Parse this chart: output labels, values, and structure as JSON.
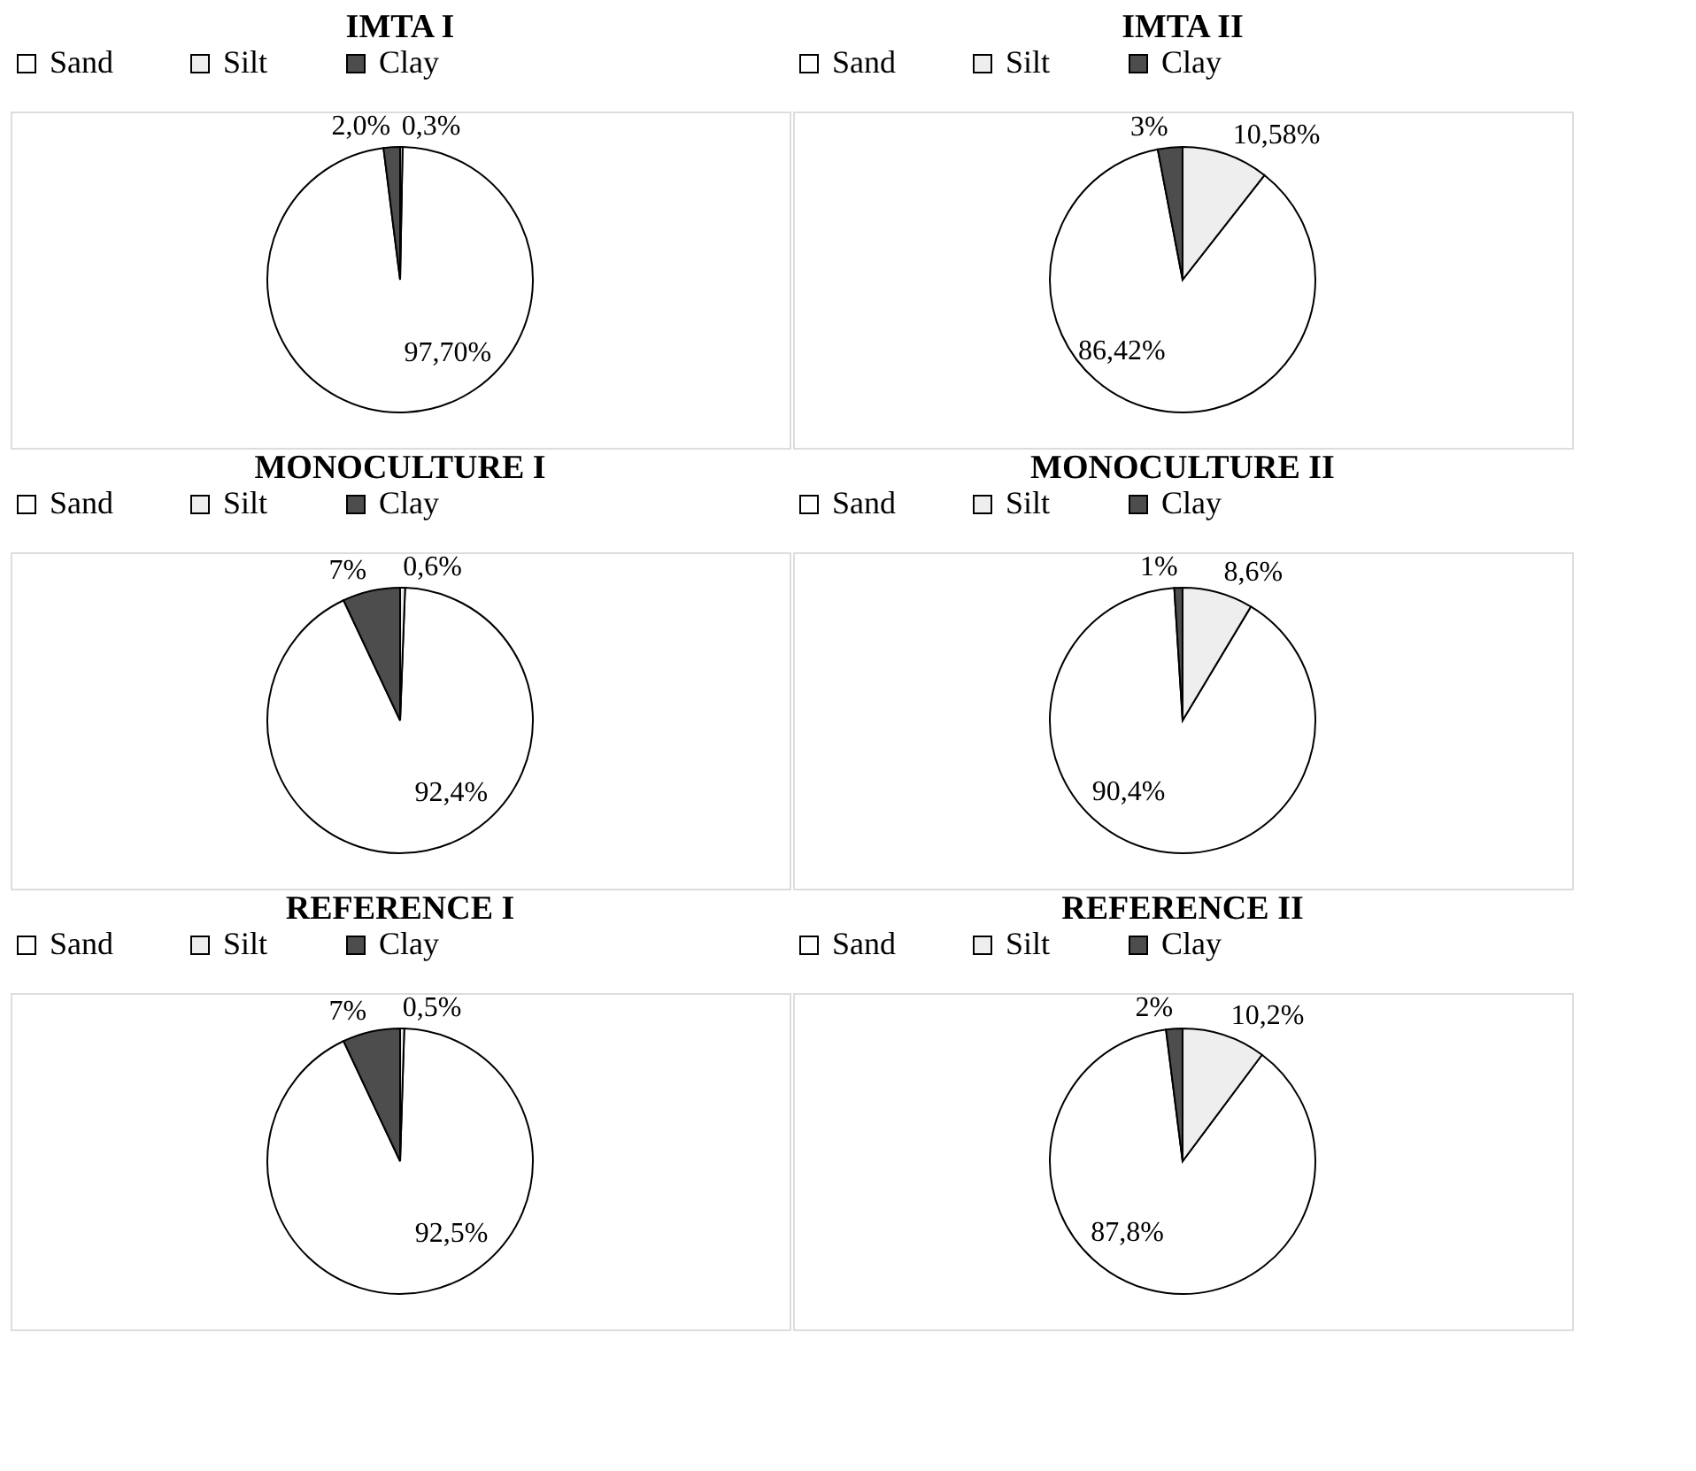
{
  "chart_data": [
    {
      "type": "pie",
      "title": "IMTA I",
      "categories": [
        "Sand",
        "Silt",
        "Clay"
      ],
      "values": [
        97.7,
        0.3,
        2.0
      ],
      "value_labels": [
        "97,70%",
        "0,3%",
        "2,0%"
      ],
      "colors": [
        "#ffffff",
        "#eeeeee",
        "#4d4d4d"
      ],
      "legend": "top"
    },
    {
      "type": "pie",
      "title": "IMTA II",
      "categories": [
        "Sand",
        "Silt",
        "Clay"
      ],
      "values": [
        86.42,
        10.58,
        3
      ],
      "value_labels": [
        "86,42%",
        "10,58%",
        "3%"
      ],
      "colors": [
        "#ffffff",
        "#eeeeee",
        "#4d4d4d"
      ],
      "legend": "top"
    },
    {
      "type": "pie",
      "title": "MONOCULTURE I",
      "categories": [
        "Sand",
        "Silt",
        "Clay"
      ],
      "values": [
        92.4,
        0.6,
        7
      ],
      "value_labels": [
        "92,4%",
        "0,6%",
        "7%"
      ],
      "colors": [
        "#ffffff",
        "#eeeeee",
        "#4d4d4d"
      ],
      "legend": "top"
    },
    {
      "type": "pie",
      "title": "MONOCULTURE II",
      "categories": [
        "Sand",
        "Silt",
        "Clay"
      ],
      "values": [
        90.4,
        8.6,
        1
      ],
      "value_labels": [
        "90,4%",
        "8,6%",
        "1%"
      ],
      "colors": [
        "#ffffff",
        "#eeeeee",
        "#4d4d4d"
      ],
      "legend": "top"
    },
    {
      "type": "pie",
      "title": "REFERENCE I",
      "categories": [
        "Sand",
        "Silt",
        "Clay"
      ],
      "values": [
        92.5,
        0.5,
        7
      ],
      "value_labels": [
        "92,5%",
        "0,5%",
        "7%"
      ],
      "colors": [
        "#ffffff",
        "#eeeeee",
        "#4d4d4d"
      ],
      "legend": "top"
    },
    {
      "type": "pie",
      "title": "REFERENCE II",
      "categories": [
        "Sand",
        "Silt",
        "Clay"
      ],
      "values": [
        87.8,
        10.2,
        2
      ],
      "value_labels": [
        "87,8%",
        "10,2%",
        "2%"
      ],
      "colors": [
        "#ffffff",
        "#eeeeee",
        "#4d4d4d"
      ],
      "legend": "top"
    }
  ]
}
